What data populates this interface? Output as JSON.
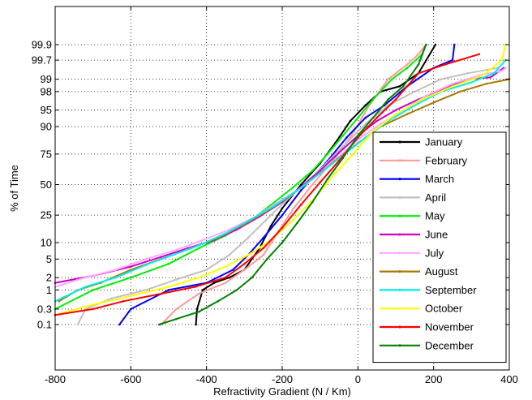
{
  "chart_data": {
    "type": "line",
    "title": "",
    "xlabel": "Refractivity Gradient (N / Km)",
    "ylabel": "% of Time",
    "xlim": [
      -800,
      400
    ],
    "y_scale": "probability (normal)",
    "ylim": [
      0.01,
      99.95
    ],
    "grid": true,
    "grid_style": "dotted",
    "legend_position": "lower-right",
    "x_ticks": [
      "-800",
      "-600",
      "-400",
      "-200",
      "0",
      "200",
      "400"
    ],
    "x_tick_values": [
      -800,
      -600,
      -400,
      -200,
      0,
      200,
      400
    ],
    "y_ticks": [
      "0.1",
      "0.3",
      "1",
      "2",
      "5",
      "10",
      "25",
      "50",
      "75",
      "90",
      "95",
      "98",
      "99",
      "99.7",
      "99.9"
    ],
    "y_tick_values": [
      0.1,
      0.3,
      1,
      2,
      5,
      10,
      25,
      50,
      75,
      90,
      95,
      98,
      99,
      99.7,
      99.9
    ],
    "series": [
      {
        "name": "January",
        "color": "#000000",
        "x": [
          -428,
          -425,
          -410,
          -380,
          -340,
          -300,
          -260,
          -230,
          -200,
          -150,
          -100,
          -60,
          -20,
          20,
          60,
          110,
          160,
          205
        ],
        "y": [
          0.1,
          0.3,
          1,
          1.5,
          2,
          3,
          8,
          18,
          30,
          50,
          68,
          82,
          92,
          96,
          98,
          98.5,
          99.3,
          99.9
        ]
      },
      {
        "name": "February",
        "color": "#ff9999",
        "x": [
          -520,
          -480,
          -420,
          -350,
          -300,
          -250,
          -210,
          -170,
          -120,
          -60,
          -10,
          30,
          80,
          130,
          160,
          180
        ],
        "y": [
          0.1,
          0.3,
          0.8,
          1.5,
          3,
          6,
          15,
          30,
          50,
          72,
          88,
          96,
          99,
          99.6,
          99.8,
          99.9
        ]
      },
      {
        "name": "March",
        "color": "#0000ff",
        "x": [
          -630,
          -600,
          -500,
          -400,
          -330,
          -290,
          -250,
          -200,
          -150,
          -80,
          -30,
          20,
          70,
          130,
          200,
          250,
          255
        ],
        "y": [
          0.1,
          0.3,
          1,
          1.5,
          3,
          6,
          12,
          25,
          45,
          70,
          85,
          93,
          96,
          98.5,
          99.5,
          99.7,
          99.9
        ]
      },
      {
        "name": "April",
        "color": "#c0c0c0",
        "x": [
          -740,
          -720,
          -650,
          -560,
          -480,
          -400,
          -340,
          -290,
          -230,
          -170,
          -100,
          -40,
          20,
          80,
          150,
          220,
          290,
          370
        ],
        "y": [
          0.1,
          0.3,
          0.6,
          1,
          1.8,
          3,
          6,
          12,
          25,
          42,
          63,
          80,
          91,
          96,
          98,
          99,
          99.3,
          99.5
        ]
      },
      {
        "name": "May",
        "color": "#00ee00",
        "x": [
          -800,
          -700,
          -600,
          -500,
          -420,
          -350,
          -280,
          -220,
          -170,
          -120,
          -80,
          -40,
          0,
          40,
          90,
          130,
          170,
          180
        ],
        "y": [
          0.3,
          1,
          2,
          4,
          8,
          13,
          22,
          35,
          48,
          62,
          75,
          86,
          93,
          97,
          99,
          99.5,
          99.8,
          99.9
        ]
      },
      {
        "name": "June",
        "color": "#cc00cc",
        "x": [
          -800,
          -700,
          -600,
          -520,
          -450,
          -380,
          -320,
          -260,
          -200,
          -150,
          -100,
          -50,
          0,
          50,
          100,
          160,
          220,
          290,
          350,
          385
        ],
        "y": [
          1.5,
          2.2,
          3.5,
          5.5,
          8,
          11,
          16,
          24,
          35,
          48,
          62,
          76,
          86,
          92,
          95,
          97,
          98.2,
          99,
          99.1,
          99.5
        ]
      },
      {
        "name": "July",
        "color": "#ffaaff",
        "x": [
          -800,
          -720,
          -640,
          -560,
          -480,
          -410,
          -340,
          -270,
          -210,
          -150,
          -100,
          -50,
          0,
          60,
          120,
          180,
          250,
          320,
          380,
          390
        ],
        "y": [
          1.2,
          2,
          3,
          5,
          7.5,
          11,
          16,
          24,
          35,
          47,
          60,
          73,
          84,
          91,
          95,
          97.5,
          98.7,
          99.2,
          99.4,
          99.5
        ]
      },
      {
        "name": "August",
        "color": "#aa7700",
        "x": [
          -790,
          -740,
          -680,
          -600,
          -520,
          -440,
          -370,
          -300,
          -240,
          -180,
          -120,
          -60,
          0,
          60,
          130,
          200,
          270,
          340,
          400
        ],
        "y": [
          0.5,
          1,
          1.5,
          3,
          5,
          8,
          12,
          19,
          28,
          40,
          55,
          70,
          82,
          90,
          94,
          96.5,
          98,
          98.7,
          99
        ]
      },
      {
        "name": "September",
        "color": "#00eeee",
        "x": [
          -800,
          -720,
          -640,
          -560,
          -490,
          -420,
          -350,
          -290,
          -220,
          -160,
          -100,
          -40,
          20,
          80,
          150,
          220,
          300,
          360,
          390
        ],
        "y": [
          0.5,
          1.2,
          2,
          3.8,
          6,
          9,
          14,
          21,
          32,
          45,
          60,
          74,
          85,
          92,
          96,
          98,
          98.8,
          99.3,
          99.7
        ]
      },
      {
        "name": "October",
        "color": "#ffff00",
        "x": [
          -800,
          -700,
          -600,
          -500,
          -420,
          -350,
          -290,
          -230,
          -170,
          -110,
          -60,
          -10,
          40,
          100,
          170,
          250,
          330,
          380,
          390
        ],
        "y": [
          0.2,
          0.4,
          0.7,
          1.2,
          2,
          3.5,
          6,
          11,
          22,
          40,
          60,
          76,
          88,
          94,
          97,
          98.5,
          99.2,
          99.7,
          99.9
        ]
      },
      {
        "name": "November",
        "color": "#ff0000",
        "x": [
          -800,
          -700,
          -620,
          -520,
          -430,
          -350,
          -300,
          -250,
          -200,
          -150,
          -100,
          -50,
          0,
          50,
          100,
          160,
          230,
          320
        ],
        "y": [
          0.2,
          0.3,
          0.5,
          0.8,
          1.2,
          2,
          4,
          8,
          17,
          33,
          52,
          70,
          85,
          93,
          97,
          99.3,
          99.6,
          99.8
        ]
      },
      {
        "name": "December",
        "color": "#008000",
        "x": [
          -525,
          -480,
          -420,
          -370,
          -320,
          -280,
          -240,
          -200,
          -160,
          -120,
          -80,
          -40,
          0,
          40,
          80,
          120,
          160,
          180
        ],
        "y": [
          0.1,
          0.15,
          0.25,
          0.5,
          1,
          2,
          5,
          10,
          20,
          35,
          55,
          72,
          86,
          93,
          97,
          98.5,
          99.6,
          99.9
        ]
      }
    ]
  }
}
